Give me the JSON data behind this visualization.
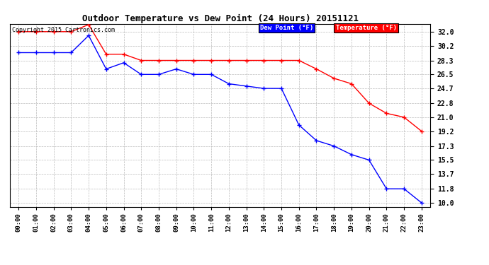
{
  "title": "Outdoor Temperature vs Dew Point (24 Hours) 20151121",
  "copyright": "Copyright 2015 Cartronics.com",
  "x_labels": [
    "00:00",
    "01:00",
    "02:00",
    "03:00",
    "04:00",
    "05:00",
    "06:00",
    "07:00",
    "08:00",
    "09:00",
    "10:00",
    "11:00",
    "12:00",
    "13:00",
    "14:00",
    "15:00",
    "16:00",
    "17:00",
    "18:00",
    "19:00",
    "20:00",
    "21:00",
    "22:00",
    "23:00"
  ],
  "temperature": [
    32.0,
    32.0,
    32.0,
    32.0,
    32.9,
    29.1,
    29.1,
    28.3,
    28.3,
    28.3,
    28.3,
    28.3,
    28.3,
    28.3,
    28.3,
    28.3,
    28.3,
    27.2,
    26.0,
    25.3,
    22.8,
    21.5,
    21.0,
    19.2
  ],
  "dew_point": [
    29.3,
    29.3,
    29.3,
    29.3,
    31.5,
    27.2,
    28.0,
    26.5,
    26.5,
    27.2,
    26.5,
    26.5,
    25.3,
    25.0,
    24.7,
    24.7,
    20.0,
    18.0,
    17.3,
    16.2,
    15.5,
    11.8,
    11.8,
    10.0
  ],
  "ylim_min": 9.5,
  "ylim_max": 33.0,
  "yticks": [
    10.0,
    11.8,
    13.7,
    15.5,
    17.3,
    19.2,
    21.0,
    22.8,
    24.7,
    26.5,
    28.3,
    30.2,
    32.0
  ],
  "temp_color": "#ff0000",
  "dew_color": "#0000ff",
  "bg_color": "#ffffff",
  "grid_color": "#bbbbbb",
  "legend_dew_bg": "#0000ff",
  "legend_temp_bg": "#ff0000"
}
